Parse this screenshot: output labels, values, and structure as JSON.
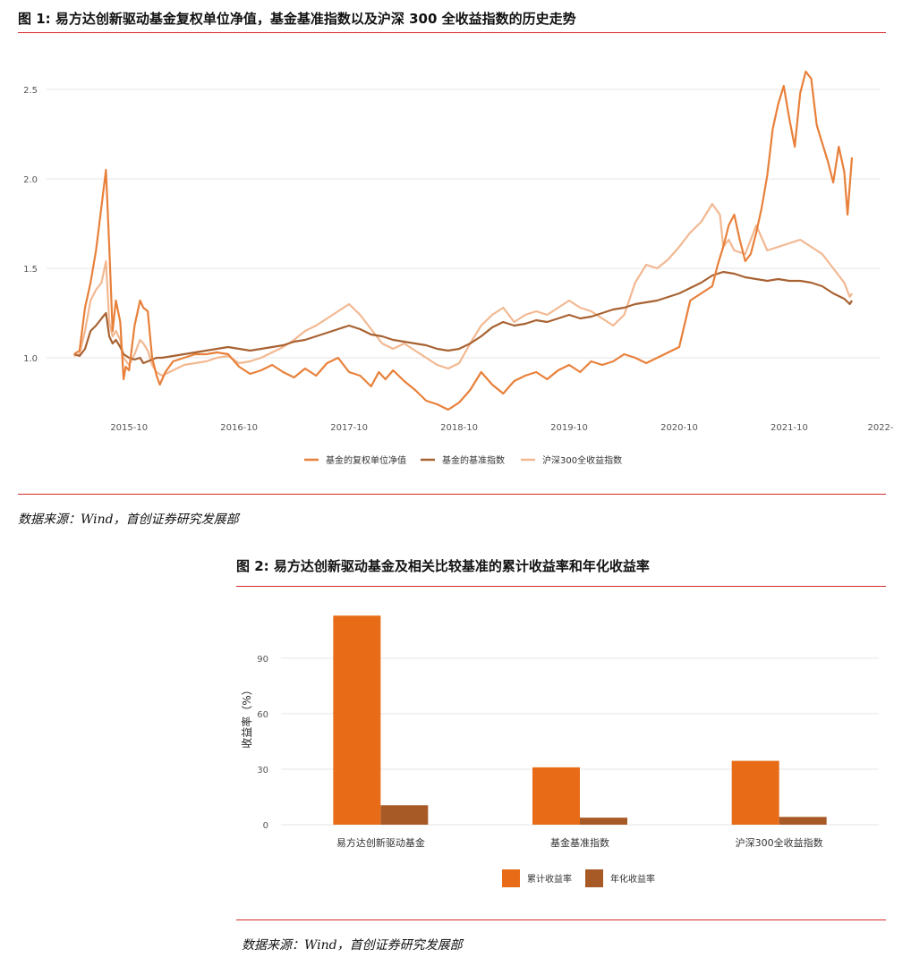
{
  "colors": {
    "fund": "#e8803a",
    "benchmark": "#a86232",
    "csi300": "#f2b891",
    "bar_cum": "#e86c17",
    "bar_ann": "#a85a26",
    "rule": "#d62a2a",
    "grid": "#e6e6e6"
  },
  "figure1": {
    "title": "图 1: 易方达创新驱动基金复权单位净值，基金基准指数以及沪深 300 全收益指数的历史走势",
    "source": "数据来源：Wind，首创证券研究发展部"
  },
  "figure2": {
    "title": "图 2: 易方达创新驱动基金及相关比较基准的累计收益率和年化收益率",
    "source": "数据来源：Wind，首创证券研究发展部"
  },
  "chart_data": [
    {
      "type": "line",
      "title": "",
      "xlabel": "",
      "ylabel": "",
      "x_ticks": [
        "2015-10",
        "2016-10",
        "2017-10",
        "2018-10",
        "2019-10",
        "2020-10",
        "2021-10",
        "2022-"
      ],
      "x_tick_values": [
        2015.75,
        2016.75,
        2017.75,
        2018.75,
        2019.75,
        2020.75,
        2021.75,
        2022.58
      ],
      "xlim": [
        2015.0,
        2022.58
      ],
      "y_ticks": [
        "1.0",
        "1.5",
        "2.0",
        "2.5"
      ],
      "y_tick_values": [
        1.0,
        1.5,
        2.0,
        2.5
      ],
      "ylim": [
        0.6,
        2.75
      ],
      "grid": "horizontal",
      "legend": "bottom-center",
      "series": [
        {
          "name": "基金的复权单位净值",
          "color_key": "fund",
          "x": [
            2015.25,
            2015.3,
            2015.35,
            2015.4,
            2015.45,
            2015.5,
            2015.54,
            2015.57,
            2015.6,
            2015.63,
            2015.67,
            2015.7,
            2015.72,
            2015.75,
            2015.8,
            2015.85,
            2015.88,
            2015.92,
            2015.96,
            2016.0,
            2016.03,
            2016.08,
            2016.15,
            2016.25,
            2016.35,
            2016.45,
            2016.55,
            2016.65,
            2016.75,
            2016.85,
            2016.95,
            2017.05,
            2017.15,
            2017.25,
            2017.35,
            2017.45,
            2017.55,
            2017.65,
            2017.75,
            2017.85,
            2017.95,
            2018.02,
            2018.08,
            2018.15,
            2018.25,
            2018.35,
            2018.45,
            2018.55,
            2018.65,
            2018.75,
            2018.85,
            2018.95,
            2019.05,
            2019.15,
            2019.25,
            2019.35,
            2019.45,
            2019.55,
            2019.65,
            2019.75,
            2019.85,
            2019.95,
            2020.05,
            2020.15,
            2020.25,
            2020.35,
            2020.45,
            2020.55,
            2020.65,
            2020.75,
            2020.85,
            2020.95,
            2021.0,
            2021.05,
            2021.1,
            2021.15,
            2021.2,
            2021.25,
            2021.3,
            2021.35,
            2021.4,
            2021.45,
            2021.5,
            2021.55,
            2021.6,
            2021.65,
            2021.7,
            2021.75,
            2021.8,
            2021.85,
            2021.9,
            2021.95,
            2022.0,
            2022.05,
            2022.1,
            2022.15,
            2022.2,
            2022.25,
            2022.28,
            2022.32
          ],
          "y": [
            1.02,
            1.04,
            1.28,
            1.42,
            1.6,
            1.85,
            2.05,
            1.62,
            1.15,
            1.32,
            1.2,
            0.88,
            0.95,
            0.93,
            1.18,
            1.32,
            1.28,
            1.26,
            1.0,
            0.9,
            0.85,
            0.92,
            0.98,
            1.0,
            1.02,
            1.02,
            1.03,
            1.02,
            0.95,
            0.91,
            0.93,
            0.96,
            0.92,
            0.89,
            0.94,
            0.9,
            0.97,
            1.0,
            0.92,
            0.9,
            0.84,
            0.92,
            0.88,
            0.93,
            0.87,
            0.82,
            0.76,
            0.74,
            0.71,
            0.75,
            0.82,
            0.92,
            0.85,
            0.8,
            0.87,
            0.9,
            0.92,
            0.88,
            0.93,
            0.96,
            0.92,
            0.98,
            0.96,
            0.98,
            1.02,
            1.0,
            0.97,
            1.0,
            1.03,
            1.06,
            1.32,
            1.36,
            1.38,
            1.4,
            1.52,
            1.62,
            1.74,
            1.8,
            1.66,
            1.54,
            1.58,
            1.7,
            1.84,
            2.02,
            2.28,
            2.42,
            2.52,
            2.34,
            2.18,
            2.48,
            2.6,
            2.56,
            2.3,
            2.2,
            2.1,
            1.98,
            2.18,
            2.04,
            1.8,
            2.12
          ]
        },
        {
          "name": "基金的基准指数",
          "color_key": "benchmark",
          "x": [
            2015.25,
            2015.3,
            2015.35,
            2015.4,
            2015.45,
            2015.5,
            2015.54,
            2015.57,
            2015.6,
            2015.63,
            2015.67,
            2015.7,
            2015.75,
            2015.8,
            2015.85,
            2015.88,
            2015.92,
            2015.96,
            2016.0,
            2016.05,
            2016.15,
            2016.25,
            2016.35,
            2016.45,
            2016.55,
            2016.65,
            2016.75,
            2016.85,
            2016.95,
            2017.05,
            2017.15,
            2017.25,
            2017.35,
            2017.45,
            2017.55,
            2017.65,
            2017.75,
            2017.85,
            2017.95,
            2018.05,
            2018.15,
            2018.25,
            2018.35,
            2018.45,
            2018.55,
            2018.65,
            2018.75,
            2018.85,
            2018.95,
            2019.05,
            2019.15,
            2019.25,
            2019.35,
            2019.45,
            2019.55,
            2019.65,
            2019.75,
            2019.85,
            2019.95,
            2020.05,
            2020.15,
            2020.25,
            2020.35,
            2020.45,
            2020.55,
            2020.65,
            2020.75,
            2020.85,
            2020.95,
            2021.05,
            2021.15,
            2021.25,
            2021.35,
            2021.45,
            2021.55,
            2021.65,
            2021.75,
            2021.85,
            2021.95,
            2022.05,
            2022.15,
            2022.25,
            2022.3,
            2022.32
          ],
          "y": [
            1.02,
            1.01,
            1.05,
            1.15,
            1.18,
            1.22,
            1.25,
            1.12,
            1.08,
            1.1,
            1.06,
            1.02,
            1.0,
            0.99,
            1.0,
            0.97,
            0.98,
            0.99,
            1.0,
            1.0,
            1.01,
            1.02,
            1.03,
            1.04,
            1.05,
            1.06,
            1.05,
            1.04,
            1.05,
            1.06,
            1.07,
            1.09,
            1.1,
            1.12,
            1.14,
            1.16,
            1.18,
            1.16,
            1.13,
            1.12,
            1.1,
            1.09,
            1.08,
            1.07,
            1.05,
            1.04,
            1.05,
            1.08,
            1.12,
            1.17,
            1.2,
            1.18,
            1.19,
            1.21,
            1.2,
            1.22,
            1.24,
            1.22,
            1.23,
            1.25,
            1.27,
            1.28,
            1.3,
            1.31,
            1.32,
            1.34,
            1.36,
            1.39,
            1.42,
            1.46,
            1.48,
            1.47,
            1.45,
            1.44,
            1.43,
            1.44,
            1.43,
            1.43,
            1.42,
            1.4,
            1.36,
            1.33,
            1.3,
            1.32
          ]
        },
        {
          "name": "沪深300全收益指数",
          "color_key": "csi300",
          "x": [
            2015.25,
            2015.3,
            2015.35,
            2015.4,
            2015.45,
            2015.5,
            2015.54,
            2015.57,
            2015.6,
            2015.63,
            2015.67,
            2015.7,
            2015.75,
            2015.8,
            2015.85,
            2015.88,
            2015.92,
            2015.96,
            2016.0,
            2016.05,
            2016.15,
            2016.25,
            2016.35,
            2016.45,
            2016.55,
            2016.65,
            2016.75,
            2016.85,
            2016.95,
            2017.05,
            2017.15,
            2017.25,
            2017.35,
            2017.45,
            2017.55,
            2017.65,
            2017.75,
            2017.85,
            2017.95,
            2018.05,
            2018.15,
            2018.25,
            2018.35,
            2018.45,
            2018.55,
            2018.65,
            2018.75,
            2018.85,
            2018.95,
            2019.05,
            2019.15,
            2019.25,
            2019.35,
            2019.45,
            2019.55,
            2019.65,
            2019.75,
            2019.85,
            2019.95,
            2020.05,
            2020.15,
            2020.25,
            2020.35,
            2020.45,
            2020.55,
            2020.65,
            2020.75,
            2020.85,
            2020.95,
            2021.05,
            2021.12,
            2021.15,
            2021.2,
            2021.25,
            2021.35,
            2021.45,
            2021.55,
            2021.65,
            2021.75,
            2021.85,
            2021.95,
            2022.05,
            2022.15,
            2022.25,
            2022.3,
            2022.32
          ],
          "y": [
            1.01,
            1.02,
            1.15,
            1.32,
            1.38,
            1.42,
            1.54,
            1.2,
            1.12,
            1.15,
            1.1,
            1.0,
            0.96,
            1.02,
            1.1,
            1.08,
            1.04,
            0.96,
            0.92,
            0.9,
            0.93,
            0.96,
            0.97,
            0.98,
            1.0,
            1.01,
            0.97,
            0.98,
            1.0,
            1.03,
            1.06,
            1.1,
            1.15,
            1.18,
            1.22,
            1.26,
            1.3,
            1.24,
            1.16,
            1.08,
            1.05,
            1.08,
            1.04,
            1.0,
            0.96,
            0.94,
            0.97,
            1.08,
            1.18,
            1.24,
            1.28,
            1.2,
            1.24,
            1.26,
            1.24,
            1.28,
            1.32,
            1.28,
            1.26,
            1.22,
            1.18,
            1.24,
            1.42,
            1.52,
            1.5,
            1.55,
            1.62,
            1.7,
            1.76,
            1.86,
            1.8,
            1.62,
            1.66,
            1.6,
            1.58,
            1.74,
            1.6,
            1.62,
            1.64,
            1.66,
            1.62,
            1.58,
            1.5,
            1.42,
            1.34,
            1.36
          ]
        }
      ]
    },
    {
      "type": "bar",
      "title": "",
      "xlabel": "",
      "ylabel": "收益率（%）",
      "categories": [
        "易方达创新驱动基金",
        "基金基准指数",
        "沪深300全收益指数"
      ],
      "y_ticks": [
        "0",
        "30",
        "60",
        "90"
      ],
      "y_tick_values": [
        0,
        30,
        60,
        90
      ],
      "ylim": [
        0,
        117
      ],
      "grid": "horizontal",
      "legend": "bottom-center",
      "series": [
        {
          "name": "累计收益率",
          "color_key": "bar_cum",
          "values": [
            113,
            31,
            34.5
          ]
        },
        {
          "name": "年化收益率",
          "color_key": "bar_ann",
          "values": [
            10.5,
            3.8,
            4.2
          ]
        }
      ]
    }
  ]
}
